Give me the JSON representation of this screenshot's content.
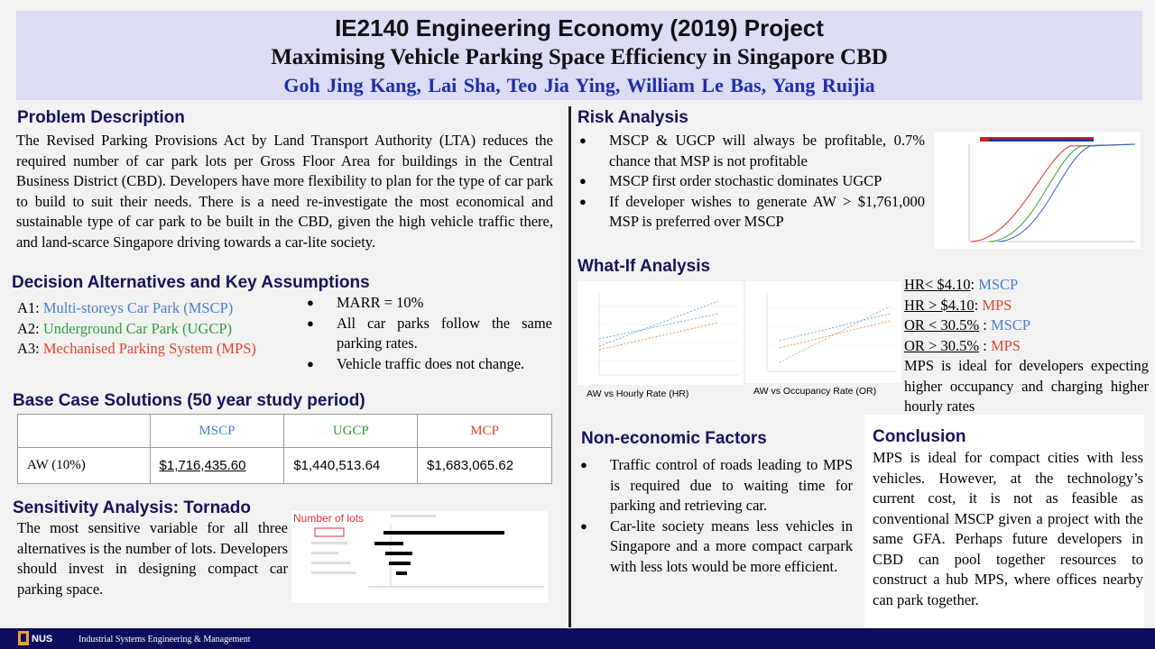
{
  "header": {
    "title": "IE2140 Engineering Economy (2019) Project",
    "subtitle": "Maximising Vehicle Parking Space Efficiency in Singapore CBD",
    "authors": "Goh Jing Kang,   Lai Sha,   Teo Jia Ying,   William Le Bas,  Yang Ruijia"
  },
  "problem": {
    "title": "Problem Description",
    "text": "The Revised Parking Provisions Act by Land Transport Authority (LTA) reduces the required number of car park lots per Gross Floor Area for buildings in the Central Business District (CBD). Developers have more flexibility to plan for the type of car park to build to suit their needs. There is a need re-investigate the most economical and sustainable type of car park to be built in the CBD, given the high vehicle traffic there, and land-scarce Singapore driving towards a car-lite society."
  },
  "decision": {
    "title": "Decision Alternatives and Key Assumptions",
    "alternatives": [
      {
        "code": "A1:",
        "name": "Multi-storeys Car Park (MSCP)"
      },
      {
        "code": "A2:",
        "name": "Underground Car Park (UGCP)"
      },
      {
        "code": "A3:",
        "name": "Mechanised Parking System (MPS)"
      }
    ],
    "assumptions": [
      "MARR = 10%",
      "All car parks follow the same parking rates.",
      "Vehicle traffic does not change."
    ]
  },
  "base_case": {
    "title": "Base Case Solutions (50 year study period)",
    "headers": [
      "",
      "MSCP",
      "UGCP",
      "MCP"
    ],
    "row_label": "AW (10%)",
    "values": [
      "$1,716,435.60",
      "$1,440,513.64",
      "$1,683,065.62"
    ]
  },
  "sensitivity": {
    "title": "Sensitivity Analysis: Tornado",
    "text": "The most sensitive variable for all three alternatives is the number of lots. Developers should invest in designing compact car parking space.",
    "chart_label": "Number of lots"
  },
  "risk": {
    "title": "Risk Analysis",
    "points": [
      "MSCP & UGCP will always be profitable, 0.7% chance that MSP is not profitable",
      "MSCP first order stochastic dominates UGCP",
      "If developer wishes to generate AW > $1,761,000 MSP is preferred over MSCP"
    ]
  },
  "whatif": {
    "title": "What-If Analysis",
    "hr_caption": "AW vs Hourly Rate (HR)",
    "or_caption": "AW vs Occupancy Rate (OR)",
    "rules": [
      {
        "cond": "HR< $4.10",
        "result": "MSCP"
      },
      {
        "cond": "HR > $4.10",
        "result": "MPS"
      },
      {
        "cond": "OR < 30.5%",
        "result": "MSCP"
      },
      {
        "cond": "OR > 30.5%",
        "result": "MPS"
      }
    ],
    "conclusion": "MPS is ideal for developers expecting higher occupancy and charging higher hourly rates"
  },
  "noneconomic": {
    "title": "Non-economic Factors",
    "points": [
      "Traffic control of roads leading to MPS is required due to waiting time for parking and retrieving car.",
      "Car-lite society means less vehicles in Singapore and a more compact carpark with less lots would be more efficient."
    ]
  },
  "conclusion": {
    "title": "Conclusion",
    "text": "MPS is ideal for compact cities with less vehicles. However, at the technology’s current cost, it is not as feasible as conventional MSCP given a project with the same GFA. Perhaps future developers in CBD can pool together resources to construct a hub MPS, where offices nearby can park together."
  },
  "footer": {
    "logo": "NUS",
    "text": "Industrial Systems Engineering & Management"
  },
  "colors": {
    "mscp": "#4a7fc8",
    "ugcp": "#2f9e3a",
    "mps": "#e0452c",
    "header_bg": "#dcdcf5",
    "footer_bg": "#0d0d5e",
    "section_title": "#14145c"
  }
}
